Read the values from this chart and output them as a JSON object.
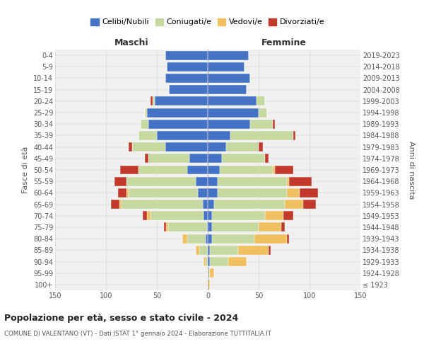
{
  "age_groups": [
    "100+",
    "95-99",
    "90-94",
    "85-89",
    "80-84",
    "75-79",
    "70-74",
    "65-69",
    "60-64",
    "55-59",
    "50-54",
    "45-49",
    "40-44",
    "35-39",
    "30-34",
    "25-29",
    "20-24",
    "15-19",
    "10-14",
    "5-9",
    "0-4"
  ],
  "birth_years": [
    "≤ 1923",
    "1924-1928",
    "1929-1933",
    "1934-1938",
    "1939-1943",
    "1944-1948",
    "1949-1953",
    "1954-1958",
    "1959-1963",
    "1964-1968",
    "1969-1973",
    "1974-1978",
    "1979-1983",
    "1984-1988",
    "1989-1993",
    "1994-1998",
    "1999-2003",
    "2004-2008",
    "2009-2013",
    "2014-2018",
    "2019-2023"
  ],
  "colors": {
    "celibi": "#4472c4",
    "coniugati": "#c5d9a0",
    "vedovi": "#f0c060",
    "divorziati": "#c0392b"
  },
  "maschi": {
    "celibi": [
      0,
      0,
      0,
      0,
      2,
      1,
      4,
      5,
      10,
      12,
      20,
      18,
      42,
      50,
      58,
      60,
      52,
      38,
      42,
      40,
      42
    ],
    "coniugati": [
      0,
      0,
      2,
      8,
      18,
      38,
      52,
      80,
      68,
      68,
      48,
      40,
      32,
      18,
      8,
      2,
      2,
      0,
      0,
      0,
      0
    ],
    "vedovi": [
      0,
      0,
      2,
      4,
      5,
      2,
      4,
      2,
      2,
      0,
      0,
      0,
      0,
      0,
      0,
      0,
      0,
      0,
      0,
      0,
      0
    ],
    "divorziati": [
      0,
      0,
      0,
      0,
      0,
      2,
      4,
      8,
      8,
      12,
      18,
      4,
      4,
      0,
      0,
      0,
      2,
      0,
      0,
      0,
      0
    ]
  },
  "femmine": {
    "celibi": [
      0,
      0,
      2,
      2,
      4,
      4,
      4,
      6,
      10,
      10,
      12,
      14,
      18,
      22,
      42,
      50,
      48,
      38,
      42,
      36,
      40
    ],
    "coniugati": [
      0,
      2,
      18,
      28,
      42,
      46,
      52,
      70,
      68,
      68,
      52,
      42,
      32,
      62,
      22,
      8,
      8,
      0,
      0,
      0,
      0
    ],
    "vedovi": [
      2,
      4,
      18,
      30,
      32,
      22,
      18,
      18,
      12,
      2,
      2,
      0,
      0,
      0,
      0,
      0,
      0,
      0,
      0,
      0,
      0
    ],
    "divorziati": [
      0,
      0,
      0,
      2,
      2,
      4,
      10,
      12,
      18,
      22,
      18,
      4,
      4,
      2,
      2,
      0,
      0,
      0,
      0,
      0,
      0
    ]
  },
  "title": "Popolazione per età, sesso e stato civile - 2024",
  "subtitle": "COMUNE DI VALENTANO (VT) - Dati ISTAT 1° gennaio 2024 - Elaborazione TUTTITALIA.IT",
  "xlabel_left": "Maschi",
  "xlabel_right": "Femmine",
  "ylabel_left": "Fasce di età",
  "ylabel_right": "Anni di nascita",
  "xlim": 150,
  "legend_labels": [
    "Celibi/Nubili",
    "Coniugati/e",
    "Vedovi/e",
    "Divorziati/e"
  ],
  "background_color": "#f0f0f0"
}
